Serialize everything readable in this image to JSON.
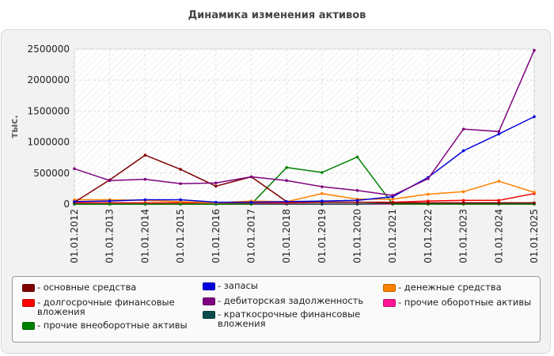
{
  "chart_data": {
    "type": "line",
    "title": "Динамика изменения активов",
    "ylabel": "тыс.",
    "xlabel": "",
    "ylim": [
      0,
      2500000
    ],
    "yticks": [
      0,
      500000,
      1000000,
      1500000,
      2000000,
      2500000
    ],
    "ytick_labels": [
      "0",
      "500000",
      "1000000",
      "1500000",
      "2000000",
      "2500000"
    ],
    "grid": true,
    "legend_position": "bottom",
    "categories": [
      "01.01.2012",
      "01.01.2013",
      "01.01.2014",
      "01.01.2015",
      "01.01.2016",
      "01.01.2017",
      "01.01.2018",
      "01.01.2019",
      "01.01.2020",
      "01.01.2021",
      "01.01.2022",
      "01.01.2023",
      "01.01.2024",
      "01.01.2025"
    ],
    "series": [
      {
        "name": "основные средства",
        "legend_label": "- основные средства",
        "color": "#800000",
        "values": [
          30000,
          390000,
          790000,
          560000,
          290000,
          440000,
          40000,
          30000,
          30000,
          20000,
          20000,
          20000,
          20000,
          20000
        ]
      },
      {
        "name": "запасы",
        "legend_label": "- запасы",
        "color": "#0000dd",
        "values": [
          40000,
          50000,
          70000,
          70000,
          30000,
          30000,
          40000,
          50000,
          60000,
          120000,
          430000,
          860000,
          1130000,
          1410000
        ]
      },
      {
        "name": "денежные средства",
        "legend_label": "- денежные средства",
        "color": "#ff8000",
        "values": [
          70000,
          70000,
          60000,
          40000,
          20000,
          50000,
          40000,
          170000,
          80000,
          80000,
          160000,
          200000,
          370000,
          190000
        ]
      },
      {
        "name": "долгосрочные финансовые вложения",
        "legend_label": "- долгосрочные финансовые вложения",
        "color": "#ff0000",
        "values": [
          20000,
          20000,
          20000,
          20000,
          20000,
          20000,
          20000,
          30000,
          30000,
          30000,
          50000,
          60000,
          60000,
          170000
        ]
      },
      {
        "name": "дебиторская задолженность",
        "legend_label": "- дебиторская задолженность",
        "color": "#800080",
        "values": [
          570000,
          380000,
          400000,
          330000,
          340000,
          440000,
          380000,
          280000,
          220000,
          140000,
          410000,
          1210000,
          1170000,
          2480000
        ]
      },
      {
        "name": "прочие оборотные активы",
        "legend_label": "- прочие оборотные активы",
        "color": "#ff1493",
        "values": [
          0,
          0,
          0,
          0,
          0,
          0,
          0,
          0,
          0,
          0,
          0,
          0,
          0,
          0
        ]
      },
      {
        "name": "прочие внеоборотные активы",
        "legend_label": "- прочие внеоборотные активы",
        "color": "#008000",
        "values": [
          0,
          0,
          0,
          0,
          0,
          0,
          590000,
          510000,
          760000,
          0,
          0,
          0,
          0,
          0
        ]
      },
      {
        "name": "краткосрочные финансовые вложения",
        "legend_label": "- краткосрочные финансовые вложения",
        "color": "#0b4d4d",
        "values": [
          0,
          0,
          0,
          0,
          0,
          0,
          0,
          0,
          0,
          10000,
          10000,
          10000,
          10000,
          10000
        ]
      }
    ]
  }
}
